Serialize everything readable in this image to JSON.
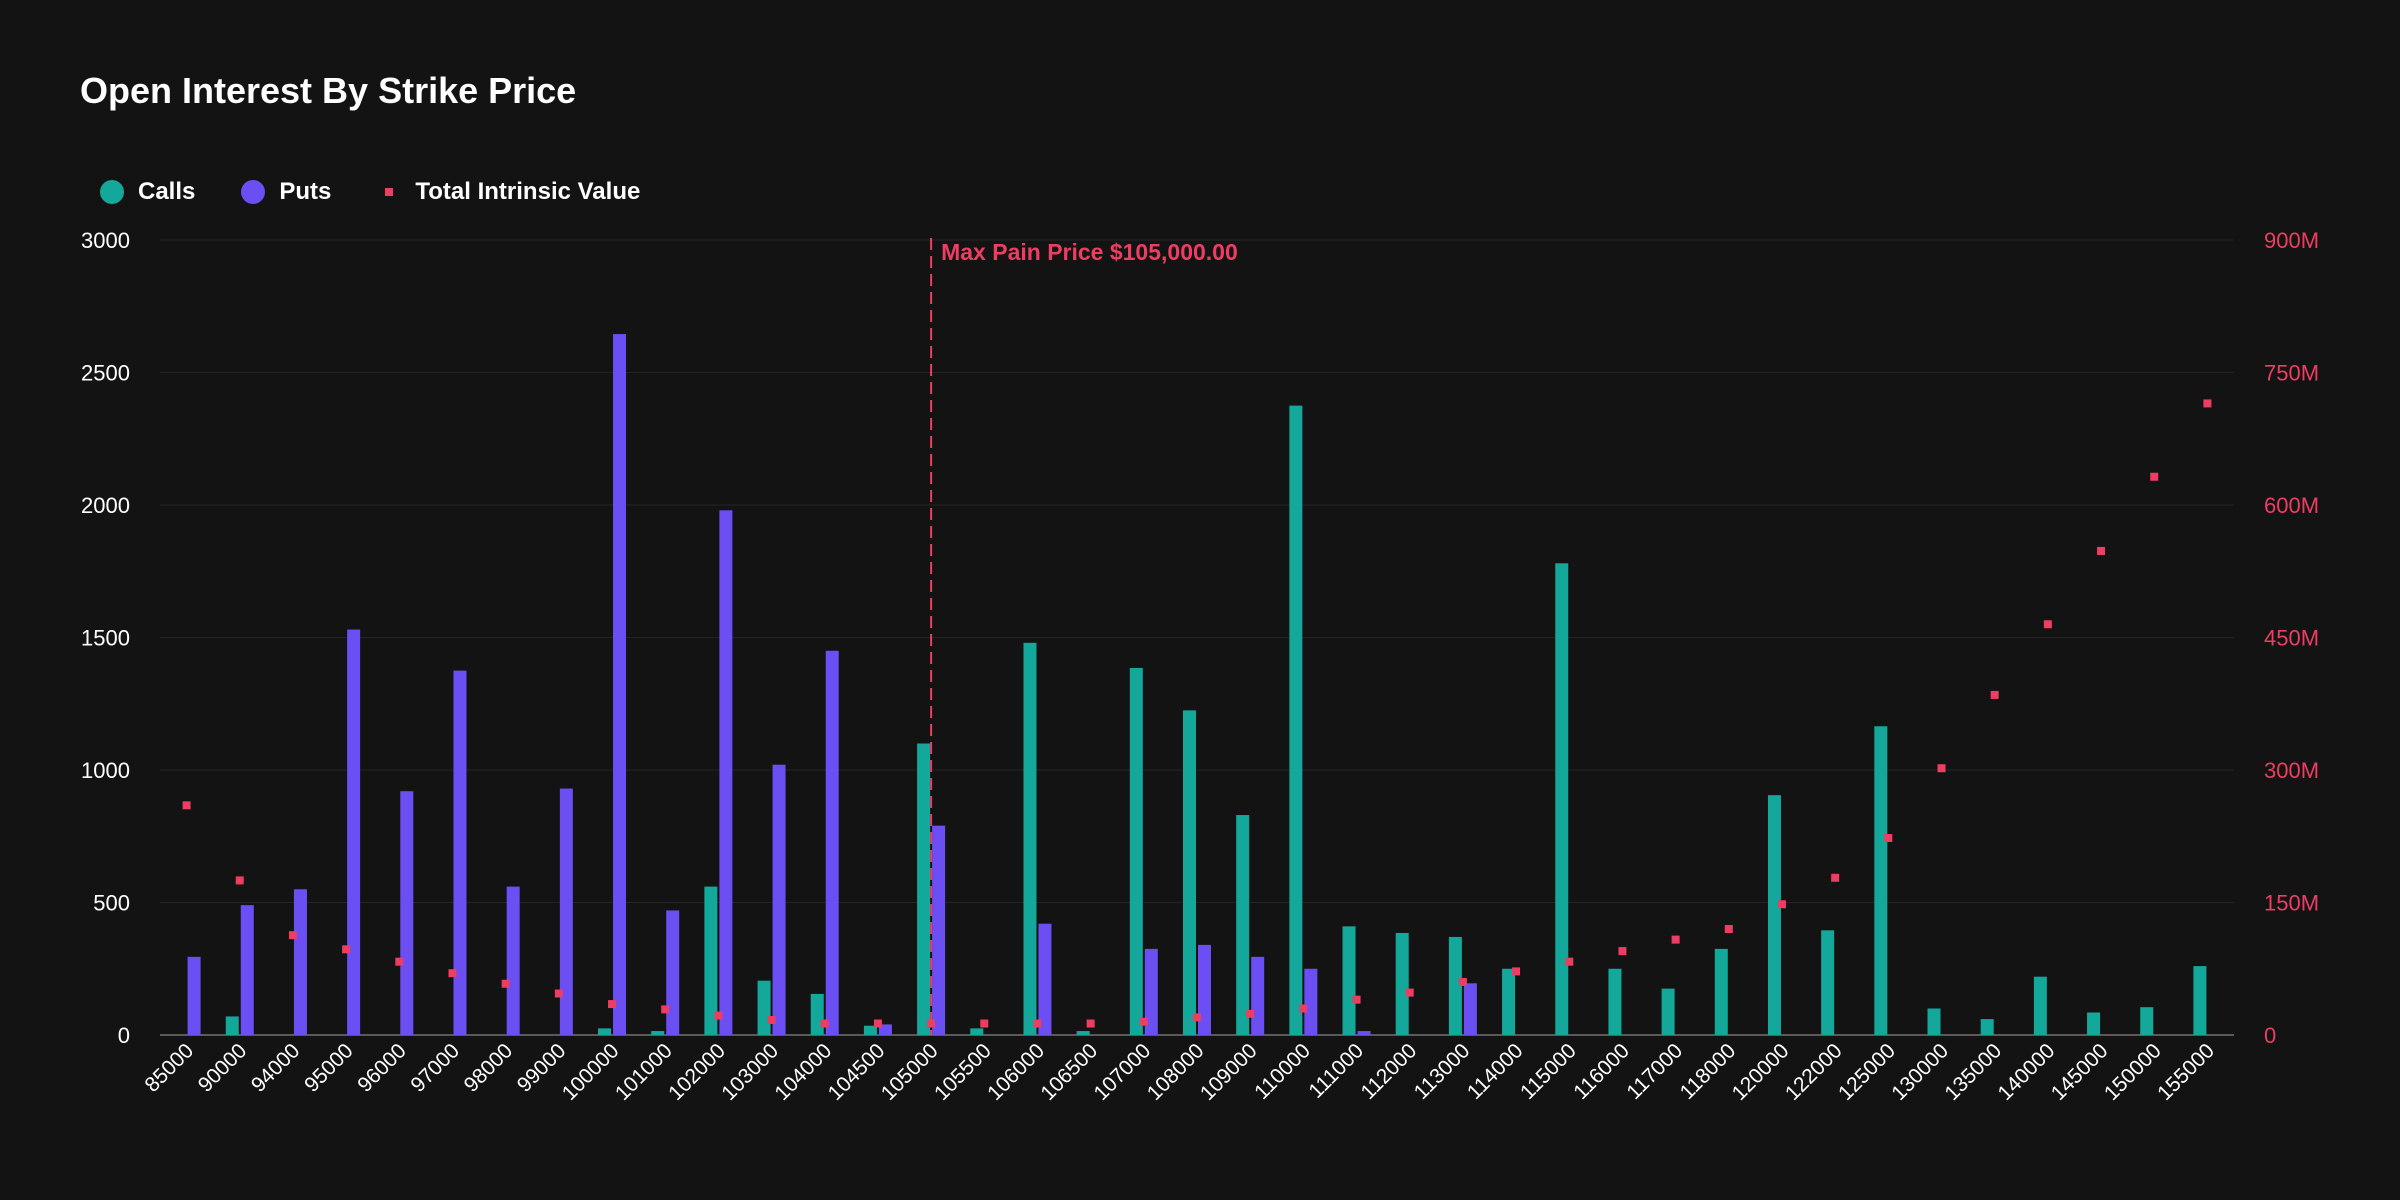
{
  "chart_data": {
    "type": "bar",
    "title": "Open Interest By Strike Price",
    "categories": [
      "85000",
      "90000",
      "94000",
      "95000",
      "96000",
      "97000",
      "98000",
      "99000",
      "100000",
      "101000",
      "102000",
      "103000",
      "104000",
      "104500",
      "105000",
      "105500",
      "106000",
      "106500",
      "107000",
      "108000",
      "109000",
      "110000",
      "111000",
      "112000",
      "113000",
      "114000",
      "115000",
      "116000",
      "117000",
      "118000",
      "120000",
      "122000",
      "125000",
      "130000",
      "135000",
      "140000",
      "145000",
      "150000",
      "155000"
    ],
    "series": [
      {
        "name": "Calls",
        "type": "bar",
        "axis": "left",
        "color": "#14a89a",
        "values": [
          0,
          70,
          0,
          0,
          0,
          0,
          0,
          0,
          25,
          15,
          560,
          205,
          155,
          35,
          1100,
          25,
          1480,
          15,
          1385,
          1225,
          830,
          2375,
          410,
          385,
          370,
          250,
          1780,
          250,
          175,
          325,
          905,
          395,
          1165,
          100,
          60,
          220,
          85,
          105,
          260
        ]
      },
      {
        "name": "Puts",
        "type": "bar",
        "axis": "left",
        "color": "#6b4ff3",
        "values": [
          295,
          490,
          550,
          1530,
          920,
          1375,
          560,
          930,
          2645,
          470,
          1980,
          1020,
          1450,
          40,
          790,
          0,
          420,
          0,
          325,
          340,
          295,
          250,
          15,
          0,
          195,
          0,
          0,
          0,
          0,
          0,
          0,
          0,
          0,
          0,
          0,
          0,
          0,
          0,
          0
        ]
      },
      {
        "name": "Total Intrinsic Value",
        "type": "scatter",
        "axis": "right",
        "color": "#ee3d62",
        "values": [
          260,
          175,
          113,
          97,
          83,
          70,
          58,
          47,
          35,
          29,
          22,
          17,
          13,
          13,
          13,
          13,
          13,
          13,
          15,
          20,
          24,
          30,
          40,
          48,
          60,
          72,
          83,
          95,
          108,
          120,
          148,
          178,
          223,
          302,
          385,
          465,
          548,
          632,
          715
        ]
      }
    ],
    "left_axis": {
      "min": 0,
      "max": 3000,
      "ticks": [
        0,
        500,
        1000,
        1500,
        2000,
        2500,
        3000
      ]
    },
    "right_axis": {
      "min": 0,
      "max": 900,
      "ticks": [
        0,
        150,
        300,
        450,
        600,
        750,
        900
      ],
      "tick_labels": [
        "0",
        "150M",
        "300M",
        "450M",
        "600M",
        "750M",
        "900M"
      ]
    },
    "annotation": {
      "label": "Max Pain Price $105,000.00",
      "category": "105000",
      "color": "#ee3d62"
    },
    "grid": true,
    "legend_position": "top-left"
  },
  "colors": {
    "background": "#131313",
    "grid": "#242424",
    "axis": "#5a5a5a",
    "label": "#ffffff",
    "right_label": "#ee3d62"
  }
}
